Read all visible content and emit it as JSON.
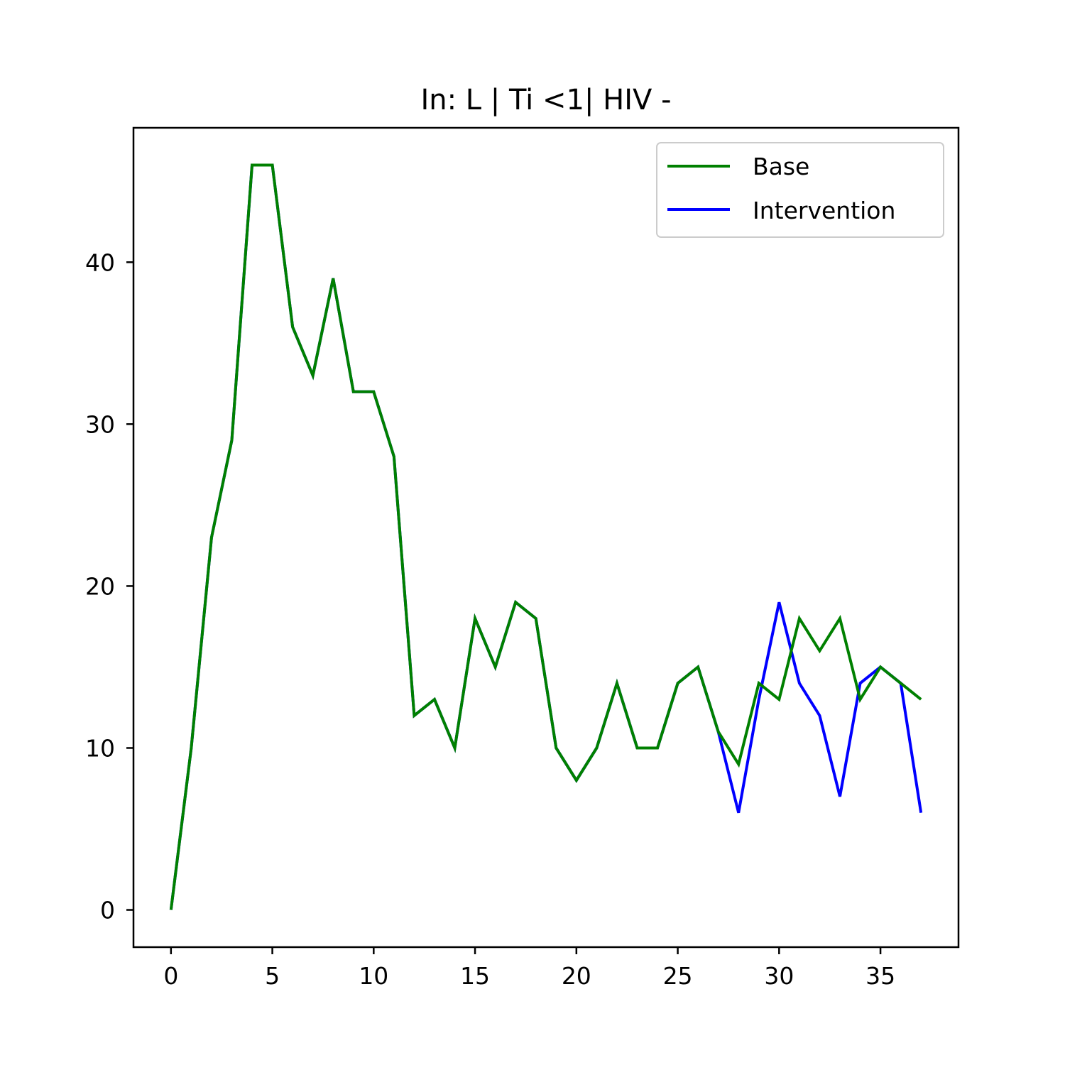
{
  "chart_data": {
    "type": "line",
    "title": "In: L | Ti <1| HIV -",
    "xlabel": "",
    "ylabel": "",
    "xlim": [
      -1.85,
      38.85
    ],
    "ylim": [
      -2.3,
      48.3
    ],
    "xticks": [
      0,
      5,
      10,
      15,
      20,
      25,
      30,
      35
    ],
    "yticks": [
      0,
      10,
      20,
      30,
      40
    ],
    "grid": false,
    "legend_position": "top-right",
    "x": [
      0,
      1,
      2,
      3,
      4,
      5,
      6,
      7,
      8,
      9,
      10,
      11,
      12,
      13,
      14,
      15,
      16,
      17,
      18,
      19,
      20,
      21,
      22,
      23,
      24,
      25,
      26,
      27,
      28,
      29,
      30,
      31,
      32,
      33,
      34,
      35,
      36,
      37
    ],
    "series": [
      {
        "name": "Intervention",
        "color": "#0000ff",
        "values": [
          0,
          10,
          23,
          29,
          46,
          46,
          36,
          33,
          39,
          32,
          32,
          28,
          12,
          13,
          10,
          18,
          15,
          19,
          18,
          10,
          8,
          10,
          14,
          10,
          10,
          14,
          15,
          11,
          6,
          13,
          19,
          14,
          12,
          7,
          14,
          15,
          14,
          6
        ]
      },
      {
        "name": "Base",
        "color": "#008000",
        "values": [
          0,
          10,
          23,
          29,
          46,
          46,
          36,
          33,
          39,
          32,
          32,
          28,
          12,
          13,
          10,
          18,
          15,
          19,
          18,
          10,
          8,
          10,
          14,
          10,
          10,
          14,
          15,
          11,
          9,
          14,
          13,
          18,
          16,
          18,
          13,
          15,
          14,
          13
        ]
      }
    ],
    "legend_order": [
      "Base",
      "Intervention"
    ]
  }
}
